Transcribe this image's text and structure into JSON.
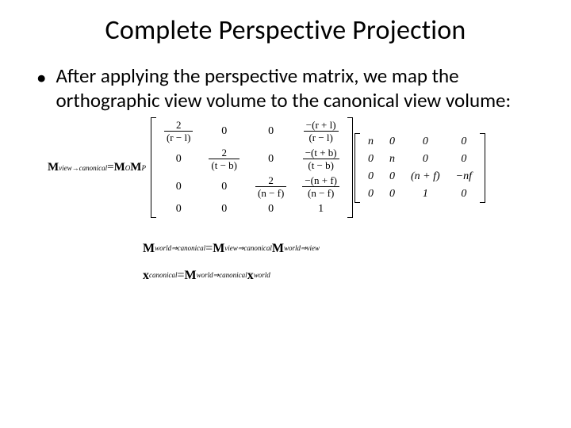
{
  "title": "Complete Perspective Projection",
  "bullet": "After applying the perspective matrix, we map the orthographic view volume to the canonical view volume:",
  "eq1": {
    "lhs_M": "M",
    "lhs_sub": "view→canonical",
    "eq": " = ",
    "M1": "M",
    "M1_sub": "O",
    "M2": "M",
    "M2_sub": "P"
  },
  "ortho_matrix": {
    "rows": [
      [
        {
          "type": "frac",
          "num": "2",
          "den": "(r − l)"
        },
        {
          "type": "plain",
          "v": "0"
        },
        {
          "type": "plain",
          "v": "0"
        },
        {
          "type": "frac",
          "num": "−(r + l)",
          "den": "(r − l)"
        }
      ],
      [
        {
          "type": "plain",
          "v": "0"
        },
        {
          "type": "frac",
          "num": "2",
          "den": "(t − b)"
        },
        {
          "type": "plain",
          "v": "0"
        },
        {
          "type": "frac",
          "num": "−(t + b)",
          "den": "(t − b)"
        }
      ],
      [
        {
          "type": "plain",
          "v": "0"
        },
        {
          "type": "plain",
          "v": "0"
        },
        {
          "type": "frac",
          "num": "2",
          "den": "(n − f)"
        },
        {
          "type": "frac",
          "num": "−(n + f)",
          "den": "(n − f)"
        }
      ],
      [
        {
          "type": "plain",
          "v": "0"
        },
        {
          "type": "plain",
          "v": "0"
        },
        {
          "type": "plain",
          "v": "0"
        },
        {
          "type": "plain",
          "v": "1"
        }
      ]
    ]
  },
  "persp_matrix": {
    "rows": [
      [
        "n",
        "0",
        "0",
        "0"
      ],
      [
        "0",
        "n",
        "0",
        "0"
      ],
      [
        "0",
        "0",
        "(n + f)",
        "−nf"
      ],
      [
        "0",
        "0",
        "1",
        "0"
      ]
    ]
  },
  "eq2": {
    "L_M": "M",
    "L_sub": "world⇒canonical",
    "eq": " = ",
    "R1_M": "M",
    "R1_sub": "view⇒canonical",
    "R2_M": "M",
    "R2_sub": "world⇒view"
  },
  "eq3": {
    "L_x": "x",
    "L_sub": "canonical",
    "eq": " = ",
    "R_M": "M",
    "R_sub": "world⇒canonical",
    "R_x": "x",
    "Rx_sub": "world"
  },
  "style": {
    "title_fontsize": 34,
    "body_fontsize": 25,
    "math_fontsize": 15,
    "math_font": "Times New Roman",
    "body_font": "Calibri",
    "text_color": "#000000",
    "background_color": "#ffffff"
  }
}
